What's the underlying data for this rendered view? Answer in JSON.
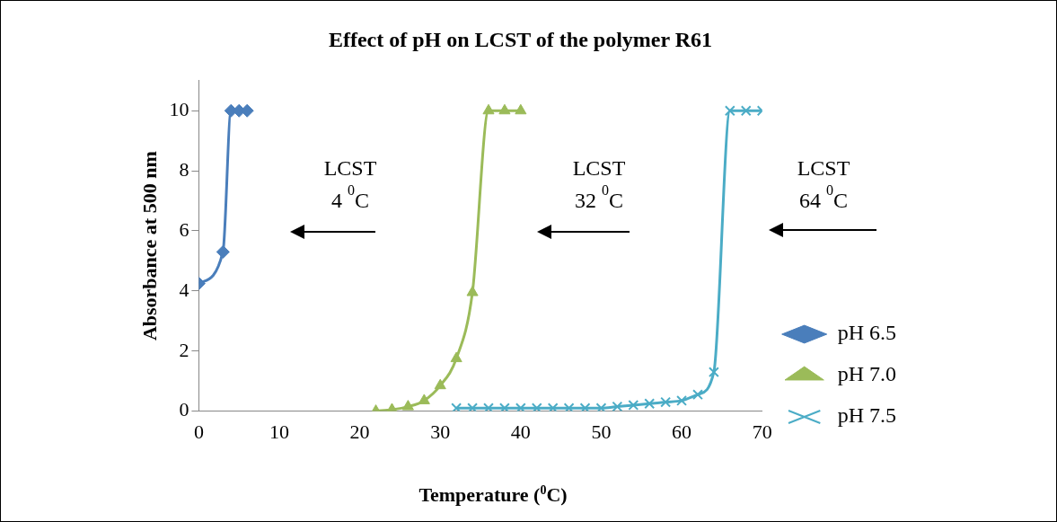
{
  "chart_data": {
    "type": "line",
    "title": "Effect of pH on LCST of the polymer R61",
    "xlabel": "Temperature ($^{0}$C)",
    "ylabel": "Absorbance at 500 nm",
    "xlim": [
      0,
      70
    ],
    "xticks": [
      0,
      10,
      20,
      30,
      40,
      50,
      60,
      70
    ],
    "ylim": [
      0,
      11
    ],
    "yticks": [
      0,
      2,
      4,
      6,
      8,
      10
    ],
    "grid": false,
    "legend": "right",
    "series": [
      {
        "name": "pH 6.5",
        "color": "#4a7ebb",
        "marker": "diamond",
        "x": [
          0,
          3,
          4,
          5,
          6
        ],
        "values": [
          4.25,
          5.3,
          10,
          10,
          10
        ]
      },
      {
        "name": "pH 7.0",
        "color": "#9bbb59",
        "marker": "triangle",
        "x": [
          22,
          24,
          26,
          28,
          30,
          32,
          34,
          36,
          38,
          40
        ],
        "values": [
          0,
          0.05,
          0.15,
          0.35,
          0.85,
          1.75,
          3.95,
          10,
          10,
          10
        ]
      },
      {
        "name": "pH 7.5",
        "color": "#4bacc6",
        "marker": "cross",
        "x": [
          32,
          34,
          36,
          38,
          40,
          42,
          44,
          46,
          48,
          50,
          52,
          54,
          56,
          58,
          60,
          62,
          64,
          66,
          68,
          70
        ],
        "values": [
          0.1,
          0.1,
          0.1,
          0.1,
          0.1,
          0.1,
          0.1,
          0.1,
          0.1,
          0.1,
          0.15,
          0.2,
          0.25,
          0.3,
          0.35,
          0.55,
          1.3,
          10,
          10,
          10
        ]
      }
    ],
    "annotations": [
      "LCST\n4 $^{0}$C",
      "LCST\n32 $^{0}$C",
      "LCST\n64 $^{0}$C"
    ]
  }
}
